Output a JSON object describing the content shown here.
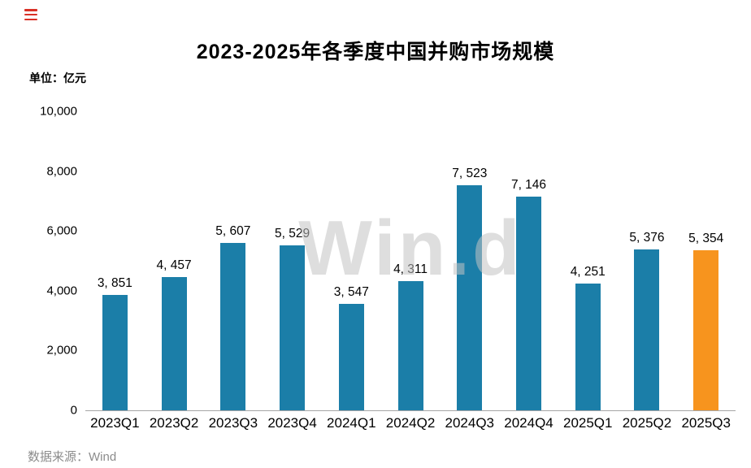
{
  "header": {
    "title": "2023-2025年各季度中国并购市场规模",
    "unit_label": "单位：亿元"
  },
  "footer": {
    "source_label": "数据来源：Wind"
  },
  "watermark": "Win.d",
  "icons": {
    "menu_icon": "red-menu-icon"
  },
  "colors": {
    "bar": "#1B7EA8",
    "bar_highlight": "#F7941E",
    "axis_line": "#A6A6A6",
    "source_text": "#8C8C8C",
    "menu_icon": "#D93026"
  },
  "chart_data": {
    "type": "bar",
    "title": "2023-2025年各季度中国并购市场规模",
    "unit": "亿元",
    "categories": [
      "2023Q1",
      "2023Q2",
      "2023Q3",
      "2023Q4",
      "2024Q1",
      "2024Q2",
      "2024Q3",
      "2024Q4",
      "2025Q1",
      "2025Q2",
      "2025Q3"
    ],
    "values": [
      3851,
      4457,
      5607,
      5529,
      3547,
      4311,
      7523,
      7146,
      4251,
      5376,
      5354
    ],
    "value_labels": [
      "3, 851",
      "4, 457",
      "5, 607",
      "5, 529",
      "3, 547",
      "4, 311",
      "7, 523",
      "7, 146",
      "4, 251",
      "5, 376",
      "5, 354"
    ],
    "highlight_index": 10,
    "xlabel": "",
    "ylabel": "亿元",
    "ylim": [
      0,
      10000
    ],
    "yticks": [
      0,
      2000,
      4000,
      6000,
      8000,
      10000
    ],
    "ytick_labels": [
      "0",
      "2,000",
      "4,000",
      "6,000",
      "8,000",
      "10,000"
    ],
    "grid": false,
    "legend": "none"
  }
}
